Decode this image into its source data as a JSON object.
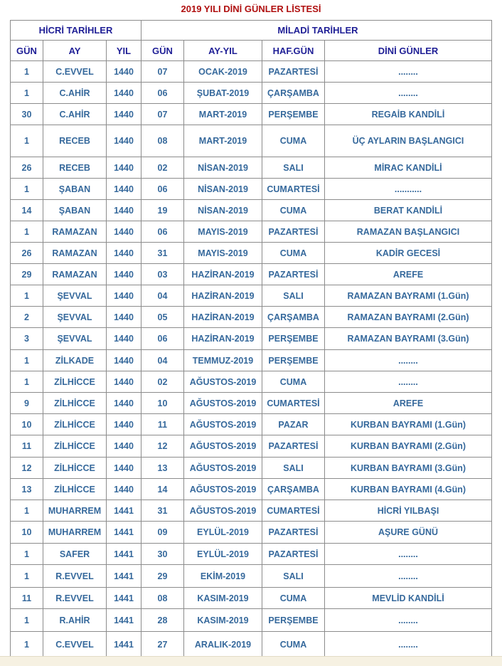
{
  "page": {
    "title": "2019 YILI DİNİ GÜNLER LİSTESİ"
  },
  "colors": {
    "title_red": "#b01010",
    "header_navy": "#1f1f96",
    "data_blue": "#36699c",
    "border_gray": "#8c8c8c",
    "hicri_box_border": "#000000",
    "footer_cream": "#f6f1e2"
  },
  "table": {
    "group_headers": [
      {
        "label": "HİCRİ TARİHLER",
        "span": 3
      },
      {
        "label": "MİLADİ TARİHLER",
        "span": 4
      }
    ],
    "columns": [
      "GÜN",
      "AY",
      "YIL",
      "GÜN",
      "AY-YIL",
      "HAF.GÜN",
      "DİNİ GÜNLER"
    ],
    "rows": [
      [
        "1",
        "C.EVVEL",
        "1440",
        "07",
        "OCAK-2019",
        "PAZARTESİ",
        "........"
      ],
      [
        "1",
        "C.AHİR",
        "1440",
        "06",
        "ŞUBAT-2019",
        "ÇARŞAMBA",
        "........"
      ],
      [
        "30",
        "C.AHİR",
        "1440",
        "07",
        "MART-2019",
        "PERŞEMBE",
        "REGAİB KANDİLİ"
      ],
      [
        "1",
        "RECEB",
        "1440",
        "08",
        "MART-2019",
        "CUMA",
        "ÜÇ AYLARIN BAŞLANGICI"
      ],
      [
        "26",
        "RECEB",
        "1440",
        "02",
        "NİSAN-2019",
        "SALI",
        "MİRAC KANDİLİ"
      ],
      [
        "1",
        "ŞABAN",
        "1440",
        "06",
        "NİSAN-2019",
        "CUMARTESİ",
        "..........."
      ],
      [
        "14",
        "ŞABAN",
        "1440",
        "19",
        "NİSAN-2019",
        "CUMA",
        "BERAT KANDİLİ"
      ],
      [
        "1",
        "RAMAZAN",
        "1440",
        "06",
        "MAYIS-2019",
        "PAZARTESİ",
        "RAMAZAN BAŞLANGICI"
      ],
      [
        "26",
        "RAMAZAN",
        "1440",
        "31",
        "MAYIS-2019",
        "CUMA",
        "KADİR GECESİ"
      ],
      [
        "29",
        "RAMAZAN",
        "1440",
        "03",
        "HAZİRAN-2019",
        "PAZARTESİ",
        "AREFE"
      ],
      [
        "1",
        "ŞEVVAL",
        "1440",
        "04",
        "HAZİRAN-2019",
        "SALI",
        "RAMAZAN BAYRAMI (1.Gün)"
      ],
      [
        "2",
        "ŞEVVAL",
        "1440",
        "05",
        "HAZİRAN-2019",
        "ÇARŞAMBA",
        "RAMAZAN BAYRAMI (2.Gün)"
      ],
      [
        "3",
        "ŞEVVAL",
        "1440",
        "06",
        "HAZİRAN-2019",
        "PERŞEMBE",
        "RAMAZAN BAYRAMI (3.Gün)"
      ],
      [
        "1",
        "ZİLKADE",
        "1440",
        "04",
        "TEMMUZ-2019",
        "PERŞEMBE",
        "........"
      ],
      [
        "1",
        "ZİLHİCCE",
        "1440",
        "02",
        "AĞUSTOS-2019",
        "CUMA",
        "........"
      ],
      [
        "9",
        "ZİLHİCCE",
        "1440",
        "10",
        "AĞUSTOS-2019",
        "CUMARTESİ",
        "AREFE"
      ],
      [
        "10",
        "ZİLHİCCE",
        "1440",
        "11",
        "AĞUSTOS-2019",
        "PAZAR",
        "KURBAN BAYRAMI (1.Gün)"
      ],
      [
        "11",
        "ZİLHİCCE",
        "1440",
        "12",
        "AĞUSTOS-2019",
        "PAZARTESİ",
        "KURBAN BAYRAMI (2.Gün)"
      ],
      [
        "12",
        "ZİLHİCCE",
        "1440",
        "13",
        "AĞUSTOS-2019",
        "SALI",
        "KURBAN BAYRAMI (3.Gün)"
      ],
      [
        "13",
        "ZİLHİCCE",
        "1440",
        "14",
        "AĞUSTOS-2019",
        "ÇARŞAMBA",
        "KURBAN BAYRAMI (4.Gün)"
      ],
      [
        "1",
        "MUHARREM",
        "1441",
        "31",
        "AĞUSTOS-2019",
        "CUMARTESİ",
        "HİCRİ YILBAŞI"
      ],
      [
        "10",
        "MUHARREM",
        "1441",
        "09",
        "EYLÜL-2019",
        "PAZARTESİ",
        "AŞURE GÜNÜ"
      ],
      [
        "1",
        "SAFER",
        "1441",
        "30",
        "EYLÜL-2019",
        "PAZARTESİ",
        "........"
      ],
      [
        "1",
        "R.EVVEL",
        "1441",
        "29",
        "EKİM-2019",
        "SALI",
        "........"
      ],
      [
        "11",
        "R.EVVEL",
        "1441",
        "08",
        "KASIM-2019",
        "CUMA",
        "MEVLİD KANDİLİ"
      ],
      [
        "1",
        "R.AHİR",
        "1441",
        "28",
        "KASIM-2019",
        "PERŞEMBE",
        "........"
      ],
      [
        "1",
        "C.EVVEL",
        "1441",
        "27",
        "ARALIK-2019",
        "CUMA",
        "........"
      ]
    ]
  }
}
